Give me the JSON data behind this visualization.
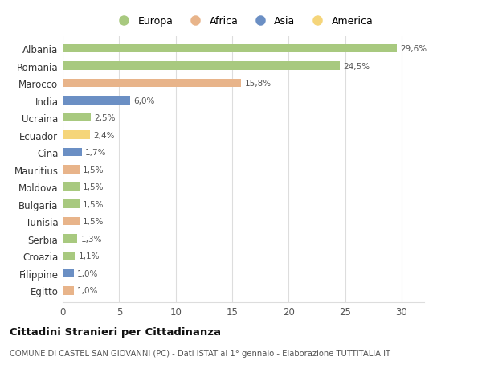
{
  "countries": [
    "Albania",
    "Romania",
    "Marocco",
    "India",
    "Ucraina",
    "Ecuador",
    "Cina",
    "Mauritius",
    "Moldova",
    "Bulgaria",
    "Tunisia",
    "Serbia",
    "Croazia",
    "Filippine",
    "Egitto"
  ],
  "values": [
    29.6,
    24.5,
    15.8,
    6.0,
    2.5,
    2.4,
    1.7,
    1.5,
    1.5,
    1.5,
    1.5,
    1.3,
    1.1,
    1.0,
    1.0
  ],
  "labels": [
    "29,6%",
    "24,5%",
    "15,8%",
    "6,0%",
    "2,5%",
    "2,4%",
    "1,7%",
    "1,5%",
    "1,5%",
    "1,5%",
    "1,5%",
    "1,3%",
    "1,1%",
    "1,0%",
    "1,0%"
  ],
  "continents": [
    "Europa",
    "Europa",
    "Africa",
    "Asia",
    "Europa",
    "America",
    "Asia",
    "Africa",
    "Europa",
    "Europa",
    "Africa",
    "Europa",
    "Europa",
    "Asia",
    "Africa"
  ],
  "continent_colors": {
    "Europa": "#a8c97f",
    "Africa": "#e8b48a",
    "Asia": "#6b8fc4",
    "America": "#f5d57a"
  },
  "legend_order": [
    "Europa",
    "Africa",
    "Asia",
    "America"
  ],
  "xlim": [
    0,
    32
  ],
  "xticks": [
    0,
    5,
    10,
    15,
    20,
    25,
    30
  ],
  "title": "Cittadini Stranieri per Cittadinanza",
  "subtitle": "COMUNE DI CASTEL SAN GIOVANNI (PC) - Dati ISTAT al 1° gennaio - Elaborazione TUTTITALIA.IT",
  "bg_color": "#ffffff",
  "grid_color": "#dddddd",
  "bar_height": 0.5
}
